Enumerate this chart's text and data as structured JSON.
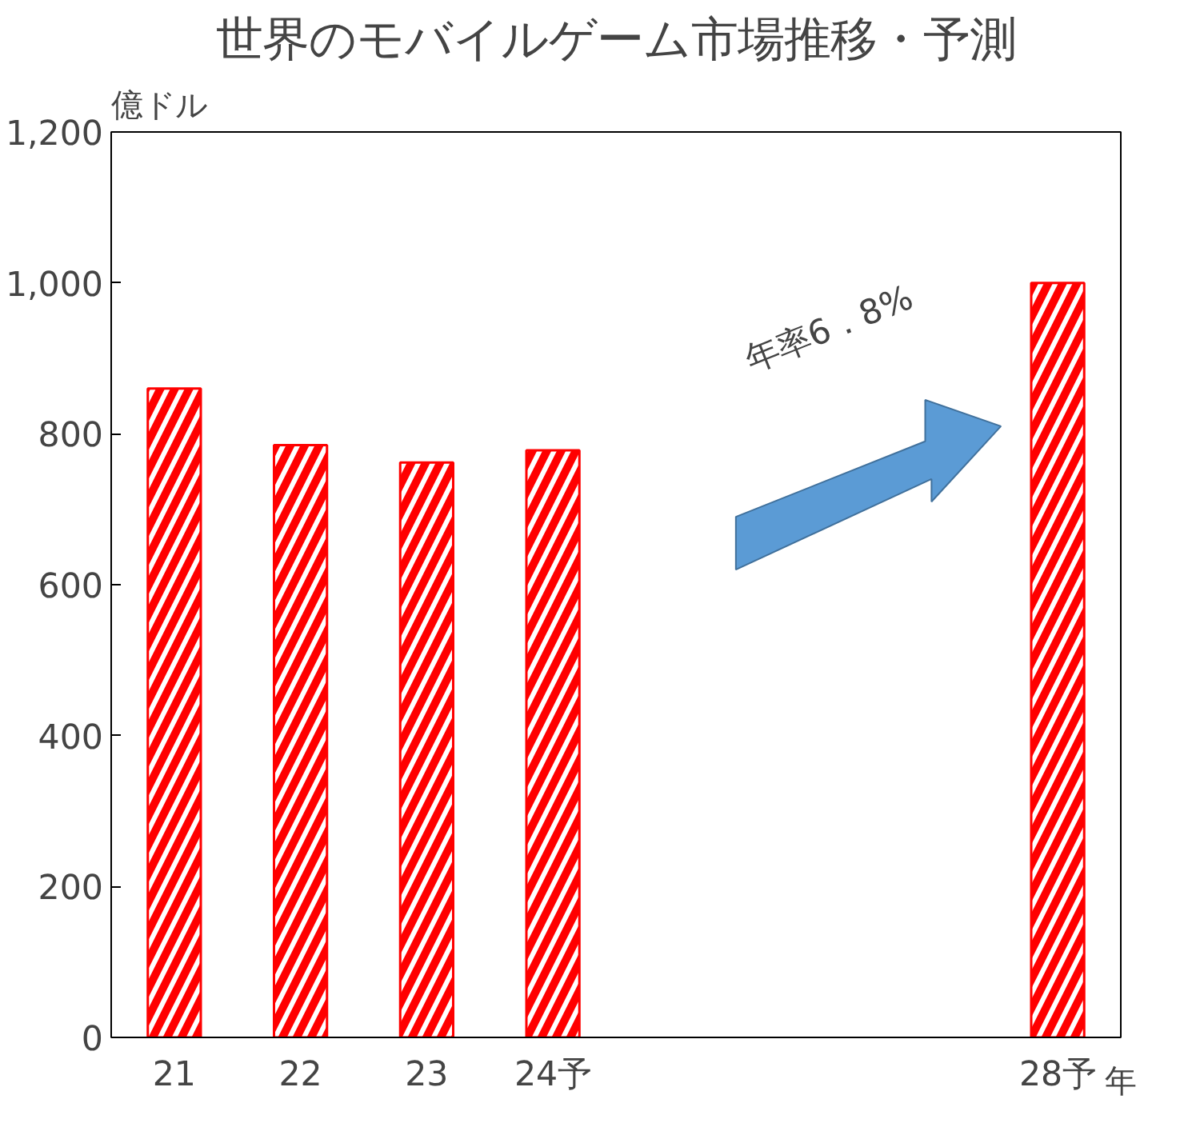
{
  "chart_data": {
    "type": "bar",
    "title": "世界のモバイルゲーム市場推移・予測",
    "ylabel": "億ドル",
    "xlabel": "年",
    "categories": [
      "21",
      "22",
      "23",
      "24予",
      null,
      null,
      null,
      "28予"
    ],
    "values": [
      860,
      785,
      762,
      778,
      null,
      null,
      null,
      1000
    ],
    "color": "#ff0000",
    "ylim": [
      0,
      1200
    ],
    "yticks": [
      0,
      {
        "value": 200,
        "label": "200"
      },
      400,
      600,
      800,
      {
        "value": 1000,
        "label": "1,000"
      },
      {
        "value": 1200,
        "label": "1,200"
      }
    ],
    "grid": false,
    "annotations": [
      "年率6．8%"
    ]
  }
}
